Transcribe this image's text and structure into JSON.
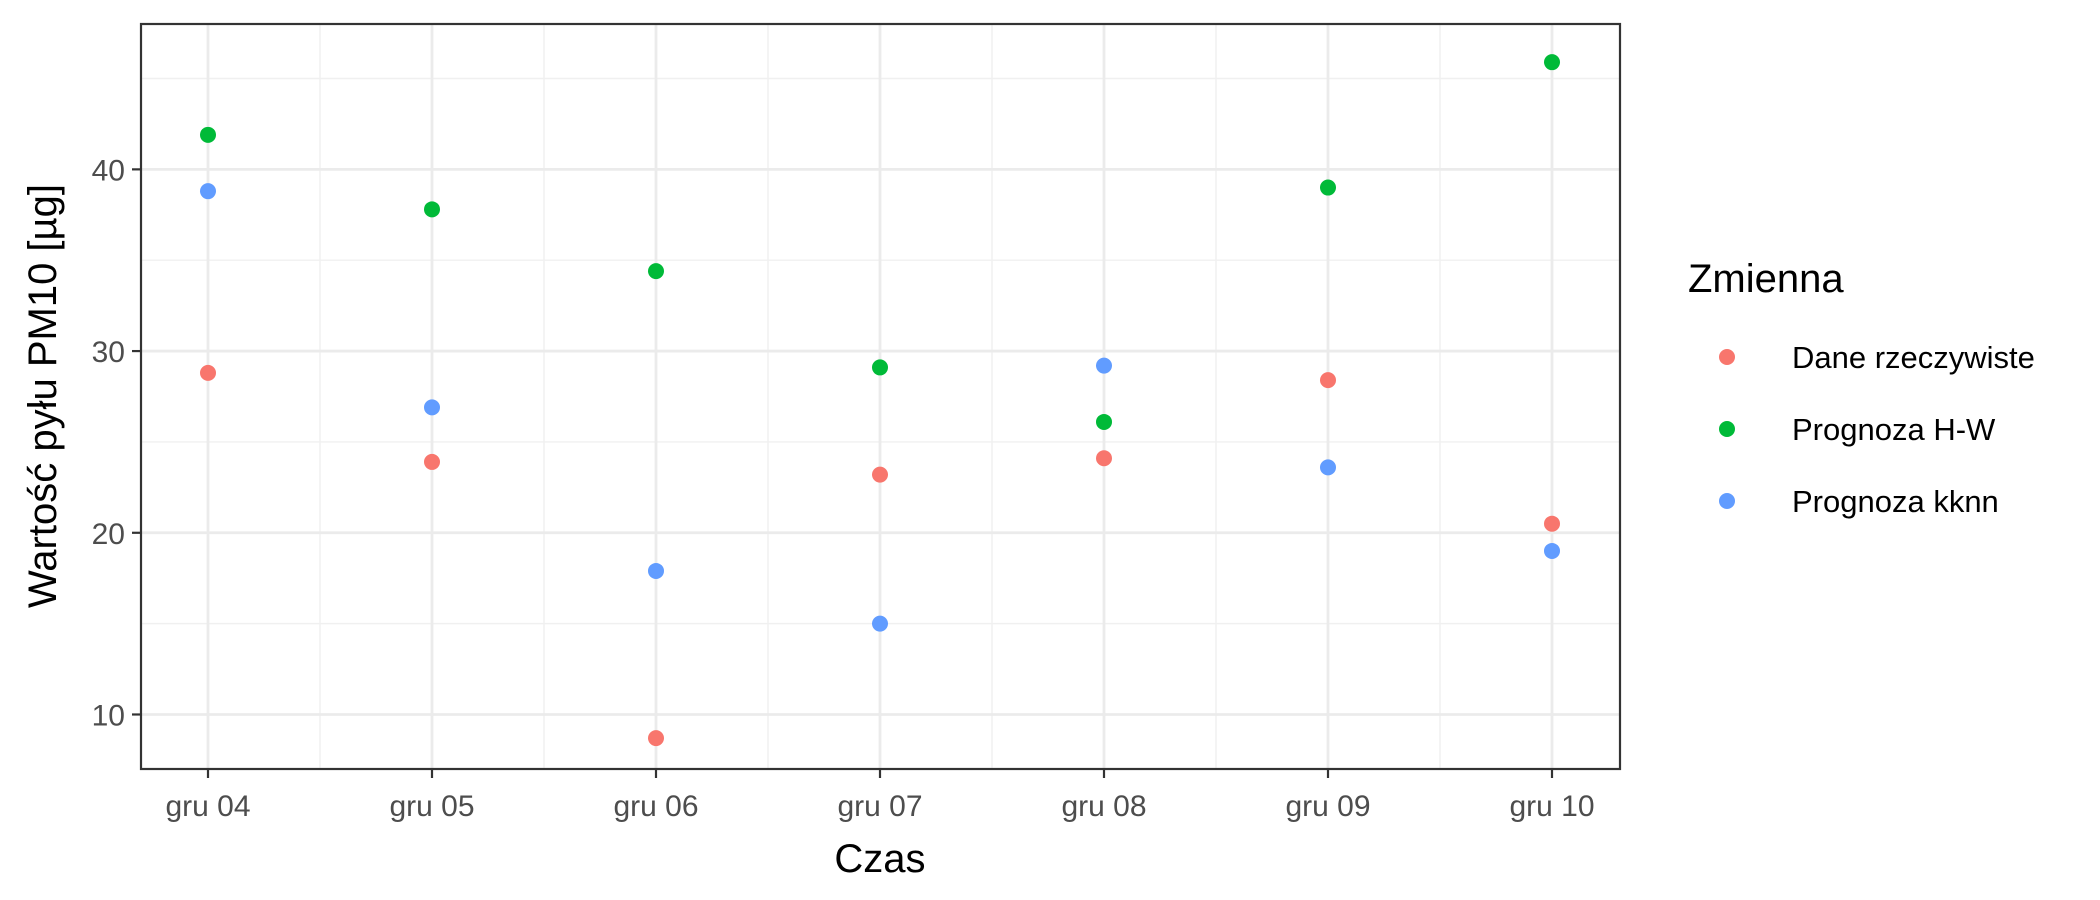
{
  "chart_data": {
    "type": "scatter",
    "categories": [
      "gru 04",
      "gru 05",
      "gru 06",
      "gru 07",
      "gru 08",
      "gru 09",
      "gru 10"
    ],
    "xlabel": "Czas",
    "ylabel": "Wartość pyłu PM10 [µg]",
    "ylim": [
      7,
      48
    ],
    "yticks": [
      10,
      20,
      30,
      40
    ],
    "grid": true,
    "legend": {
      "title": "Zmienna",
      "position": "right"
    },
    "series": [
      {
        "name": "Dane rzeczywiste",
        "color": "#F8766D",
        "values": [
          28.8,
          23.9,
          8.7,
          23.2,
          24.1,
          28.4,
          20.5
        ]
      },
      {
        "name": "Prognoza H-W",
        "color": "#00BA38",
        "values": [
          41.9,
          37.8,
          34.4,
          29.1,
          26.1,
          39.0,
          45.9
        ]
      },
      {
        "name": "Prognoza kknn",
        "color": "#619CFF",
        "values": [
          38.8,
          26.9,
          17.9,
          15.0,
          29.2,
          23.6,
          19.0
        ]
      }
    ]
  }
}
